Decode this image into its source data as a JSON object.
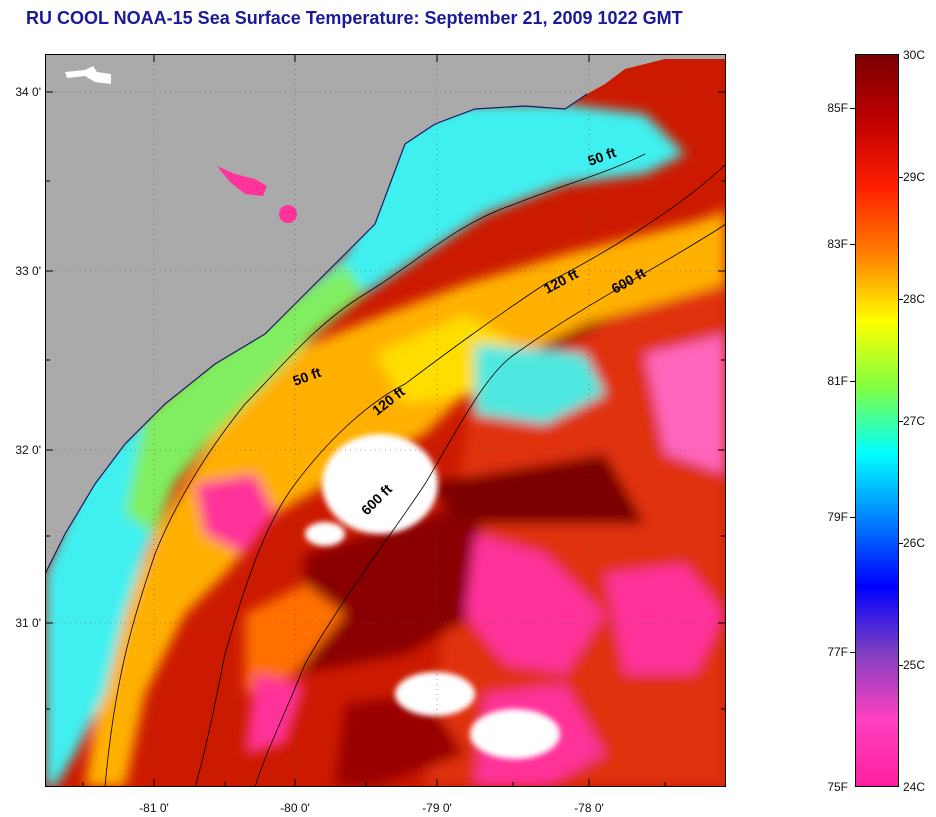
{
  "title": "RU COOL  NOAA-15  Sea Surface Temperature:  September 21, 2009 1022 GMT",
  "map": {
    "lat_labels": [
      "34 0'",
      "33 0'",
      "32 0'",
      "31 0'"
    ],
    "lon_labels": [
      "-81 0'",
      "-80 0'",
      "-79 0'",
      "-78 0'"
    ],
    "contours": [
      "50 ft",
      "50 ft",
      "120 ft",
      "120 ft",
      "600 ft",
      "600 ft"
    ],
    "colors": {
      "land": "#aaaaaa",
      "cloud": "#ffffff",
      "cool": "#ff3399",
      "warm": "#880000"
    }
  },
  "colorbar": {
    "fahrenheit_labels": [
      "85F",
      "83F",
      "81F",
      "79F",
      "77F",
      "75F"
    ],
    "celsius_labels": [
      "30C",
      "29C",
      "28C",
      "27C",
      "26C",
      "25C",
      "24C"
    ],
    "stops": [
      "#7a0000",
      "#c00000",
      "#ff2000",
      "#ff8000",
      "#ffff00",
      "#80ff40",
      "#00ffff",
      "#0080ff",
      "#0000ff",
      "#8040c0",
      "#ff40c0",
      "#ff20a0"
    ]
  }
}
